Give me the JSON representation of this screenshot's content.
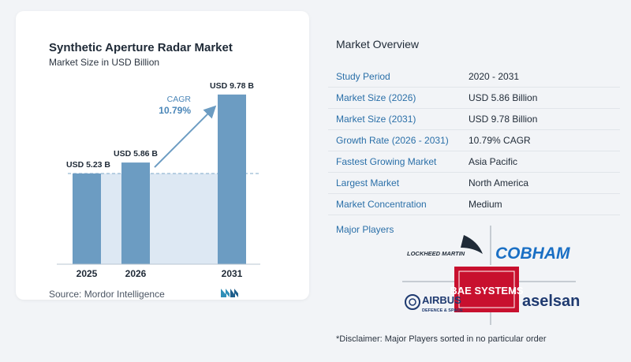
{
  "chart_data": {
    "type": "bar",
    "title": "Synthetic Aperture Radar Market",
    "subtitle": "Market Size in USD Billion",
    "categories": [
      "2025",
      "2026",
      "2031"
    ],
    "values": [
      5.23,
      5.86,
      9.78
    ],
    "value_labels": [
      "USD 5.23 B",
      "USD 5.86 B",
      "USD 9.78 B"
    ],
    "ylim": [
      0,
      10
    ],
    "bar_color": "#6c9cc2",
    "cagr_label": "CAGR",
    "cagr_value": "10.79%"
  },
  "source": "Source:  Mordor Intelligence",
  "overview": {
    "title": "Market Overview",
    "rows": [
      {
        "label": "Study Period",
        "value": "2020 - 2031"
      },
      {
        "label": "Market Size (2026)",
        "value": "USD 5.86 Billion"
      },
      {
        "label": "Market Size (2031)",
        "value": "USD 9.78 Billion"
      },
      {
        "label": "Growth Rate (2026 - 2031)",
        "value": "10.79% CAGR"
      },
      {
        "label": "Fastest Growing Market",
        "value": "Asia Pacific"
      },
      {
        "label": "Largest Market",
        "value": "North America"
      },
      {
        "label": "Market Concentration",
        "value": "Medium"
      }
    ]
  },
  "players": {
    "title": "Major Players",
    "logos": {
      "lockheed": "LOCKHEED MARTIN",
      "cobham": "COBHAM",
      "airbus": "AIRBUS",
      "airbus_sub": "DEFENCE & SPACE",
      "bae": "BAE SYSTEMS",
      "aselsan": "aselsan"
    }
  },
  "disclaimer": "*Disclaimer: Major Players sorted in no particular order"
}
